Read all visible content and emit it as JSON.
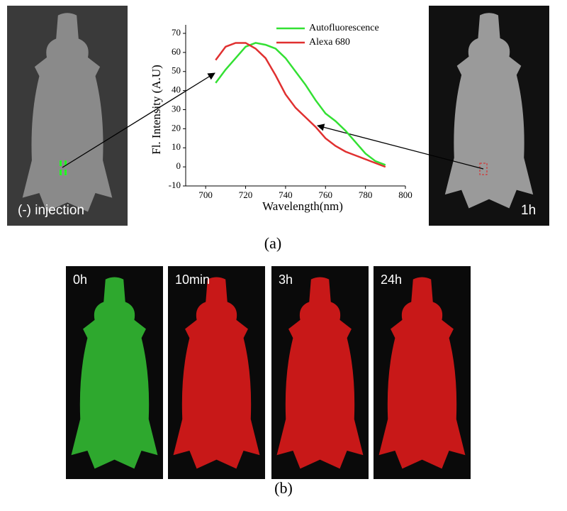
{
  "chart_data": {
    "type": "line",
    "x_label": "Wavelength(nm)",
    "y_label": "Fl. Intensity (A.U)",
    "x": [
      705,
      710,
      715,
      720,
      725,
      730,
      735,
      740,
      745,
      750,
      755,
      760,
      765,
      770,
      775,
      780,
      785,
      790
    ],
    "series": [
      {
        "name": "Autofluorescence",
        "color": "#33e033",
        "values": [
          44,
          51,
          57,
          63,
          65,
          64,
          62,
          57,
          50,
          43,
          35,
          28,
          24,
          19,
          13,
          7,
          3,
          1
        ]
      },
      {
        "name": "Alexa 680",
        "color": "#e03030",
        "values": [
          56,
          63,
          65,
          65,
          62,
          57,
          48,
          38,
          31,
          26,
          21,
          15,
          11,
          8,
          6,
          4,
          2,
          0
        ]
      }
    ],
    "xlim": [
      690,
      800
    ],
    "xticks": [
      700,
      720,
      740,
      760,
      780,
      800
    ],
    "ylim": [
      -10,
      70
    ],
    "yticks": [
      -10,
      0,
      10,
      20,
      30,
      40,
      50,
      60,
      70
    ],
    "legend": "top-right"
  },
  "panel_a": {
    "left_label": "(-) injection",
    "right_label": "1h",
    "caption": "(a)"
  },
  "panel_b": {
    "labels": [
      "0h",
      "10min",
      "3h",
      "24h"
    ],
    "caption": "(b)"
  }
}
